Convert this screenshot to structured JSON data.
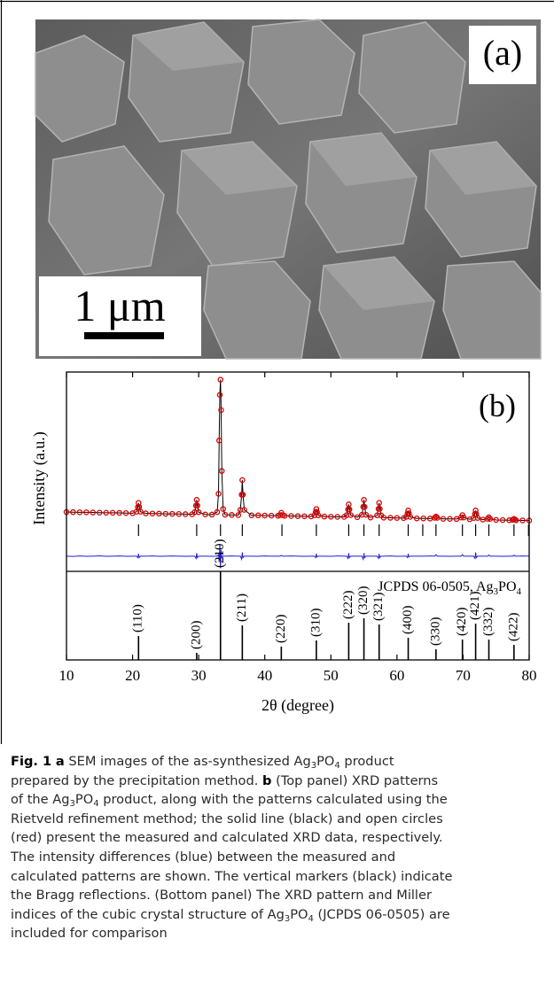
{
  "panel_a": {
    "label": "(a)",
    "scale_bar": "1 μm"
  },
  "chart_data": {
    "type": "line",
    "label": "(b)",
    "y_label": "Intensity (a.u.)",
    "x_label": "2θ (degree)",
    "xlim": [
      10,
      80
    ],
    "xticks": [
      10,
      20,
      30,
      40,
      50,
      60,
      70,
      80
    ],
    "ylim": [
      -26,
      105
    ],
    "x": [
      10,
      11,
      12,
      13,
      14,
      15,
      16,
      17,
      18,
      19,
      20,
      20.6,
      20.8,
      20.9,
      21.0,
      21.2,
      22,
      23,
      24,
      25,
      26,
      27,
      28,
      29,
      29.4,
      29.6,
      29.7,
      29.8,
      30.0,
      31,
      32,
      32.8,
      33.0,
      33.1,
      33.2,
      33.3,
      33.4,
      33.5,
      33.7,
      34,
      35,
      36,
      36.3,
      36.5,
      36.6,
      36.7,
      36.9,
      38,
      39,
      40,
      41,
      42,
      42.3,
      42.5,
      42.7,
      43,
      44,
      45,
      46,
      47,
      47.5,
      47.7,
      47.8,
      47.9,
      48.1,
      49,
      50,
      51,
      52,
      52.4,
      52.6,
      52.7,
      52.8,
      53.0,
      54,
      54.7,
      54.9,
      55.0,
      55.1,
      55.3,
      56,
      57.0,
      57.2,
      57.3,
      57.4,
      57.6,
      58,
      59,
      60,
      61,
      61.4,
      61.6,
      61.7,
      61.8,
      62.0,
      63,
      64,
      65,
      65.7,
      65.9,
      66.1,
      67,
      68,
      69,
      69.7,
      69.9,
      70.1,
      71,
      71.6,
      71.8,
      71.9,
      72.0,
      72.2,
      73,
      73.7,
      73.9,
      74.1,
      75,
      76,
      77,
      77.5,
      77.7,
      77.9,
      78,
      79,
      80
    ],
    "series": [
      {
        "color": "#000000",
        "values": [
          13.0,
          12.9,
          12.8,
          12.8,
          12.7,
          12.6,
          12.5,
          12.5,
          12.4,
          12.3,
          12.2,
          13.2,
          16.3,
          19.0,
          16.3,
          13.2,
          12.1,
          12.0,
          11.9,
          11.8,
          11.8,
          11.7,
          11.6,
          11.5,
          12.9,
          17.2,
          21.0,
          17.2,
          12.9,
          11.4,
          11.3,
          13,
          25,
          60,
          90,
          100,
          80,
          40,
          15,
          11.2,
          11.1,
          11.0,
          14.4,
          24.4,
          34.0,
          24.4,
          14.4,
          10.8,
          10.8,
          10.7,
          10.6,
          10.5,
          11.0,
          12.5,
          11.0,
          10.5,
          10.4,
          10.3,
          10.2,
          10.1,
          10.8,
          13.0,
          15.0,
          13.0,
          10.8,
          10.0,
          9.9,
          9.8,
          9.8,
          11.0,
          14.7,
          18.0,
          14.7,
          11.0,
          9.6,
          11.2,
          16.4,
          21.0,
          16.4,
          11.2,
          9.4,
          10.8,
          15.1,
          19.0,
          15.1,
          10.8,
          9.3,
          9.2,
          9.1,
          9.0,
          9.8,
          12.0,
          14.0,
          12.0,
          9.8,
          8.8,
          8.8,
          8.7,
          9.2,
          10.0,
          9.2,
          8.5,
          8.5,
          8.4,
          9.4,
          11.0,
          9.4,
          8.2,
          9.1,
          11.7,
          14.0,
          11.7,
          9.1,
          8.0,
          8.5,
          9.5,
          8.5,
          7.8,
          7.7,
          7.6,
          7.9,
          8.5,
          7.9,
          7.6,
          7.5,
          7.4
        ]
      },
      {
        "color": "#d40000",
        "marker": "circle",
        "values": [
          13.0,
          12.9,
          12.8,
          12.8,
          12.7,
          12.6,
          12.5,
          12.5,
          12.4,
          12.3,
          12.2,
          13.2,
          16.3,
          19.0,
          16.3,
          13.2,
          12.1,
          12.0,
          11.9,
          11.8,
          11.8,
          11.7,
          11.6,
          11.5,
          12.9,
          17.2,
          21.0,
          17.2,
          12.9,
          11.4,
          11.3,
          13,
          25,
          60,
          90,
          100,
          80,
          40,
          15,
          11.2,
          11.1,
          11.0,
          14.4,
          24.4,
          34.0,
          24.4,
          14.4,
          10.8,
          10.8,
          10.7,
          10.6,
          10.5,
          11.0,
          12.5,
          11.0,
          10.5,
          10.4,
          10.3,
          10.2,
          10.1,
          10.8,
          13.0,
          15.0,
          13.0,
          10.8,
          10.0,
          9.9,
          9.8,
          9.8,
          11.0,
          14.7,
          18.0,
          14.7,
          11.0,
          9.6,
          11.2,
          16.4,
          21.0,
          16.4,
          11.2,
          9.4,
          10.8,
          15.1,
          19.0,
          15.1,
          10.8,
          9.3,
          9.2,
          9.1,
          9.0,
          9.8,
          12.0,
          14.0,
          12.0,
          9.8,
          8.8,
          8.8,
          8.7,
          9.2,
          10.0,
          9.2,
          8.5,
          8.5,
          8.4,
          9.4,
          11.0,
          9.4,
          8.2,
          9.1,
          11.7,
          14.0,
          11.7,
          9.1,
          8.0,
          8.5,
          9.5,
          8.5,
          7.8,
          7.7,
          7.6,
          7.9,
          8.5,
          7.9,
          7.6,
          7.5,
          7.4
        ]
      },
      {
        "color": "#1f1fd6",
        "values": [
          -16,
          -16.2,
          -15.9,
          -16.1,
          -16,
          -15.8,
          -16.1,
          -16,
          -15.9,
          -16.1,
          -16,
          -16,
          -17,
          -14.5,
          -17,
          -16,
          -16,
          -15.9,
          -16.1,
          -16,
          -15.9,
          -16,
          -16.1,
          -16,
          -16,
          -17.5,
          -14,
          -17,
          -16,
          -16,
          -16.1,
          -16,
          -15,
          -20,
          -8,
          -24,
          -12,
          -17,
          -16,
          -16,
          -15.9,
          -16,
          -16,
          -18,
          -13.5,
          -17,
          -16,
          -16,
          -16.1,
          -15.9,
          -16,
          -16,
          -16,
          -15.5,
          -16,
          -16,
          -15.9,
          -16,
          -16.1,
          -16,
          -16,
          -17,
          -14.5,
          -16.5,
          -16,
          -16,
          -16.1,
          -15.9,
          -16,
          -16,
          -17.5,
          -14,
          -17,
          -16,
          -16,
          -16,
          -18,
          -14,
          -17,
          -16,
          -16,
          -16,
          -17.5,
          -14.5,
          -17,
          -16,
          -16,
          -15.9,
          -16.1,
          -16,
          -16,
          -17,
          -14.5,
          -16.5,
          -16,
          -16,
          -16,
          -15.9,
          -16,
          -15,
          -16,
          -16,
          -16.1,
          -16,
          -16,
          -15,
          -16,
          -16,
          -16,
          -17.5,
          -13.5,
          -17,
          -16,
          -16,
          -16,
          -15.2,
          -16,
          -16,
          -16.1,
          -16,
          -16,
          -15.4,
          -16,
          -16,
          -15.9,
          -16
        ]
      }
    ],
    "bragg_positions": [
      20.9,
      29.7,
      33.3,
      36.6,
      42.6,
      47.8,
      52.7,
      55.0,
      57.3,
      61.7,
      63.9,
      65.9,
      69.9,
      71.9,
      73.9,
      77.7,
      79.9
    ],
    "reference": {
      "label": [
        "JCPDS 06-0505, Ag",
        "3",
        "PO",
        "4"
      ],
      "ylim": [
        0,
        100
      ],
      "positions": [
        20.9,
        29.7,
        33.3,
        36.6,
        42.5,
        47.8,
        52.7,
        55.0,
        57.3,
        61.7,
        65.9,
        69.9,
        71.9,
        73.9,
        77.7
      ],
      "intensities": [
        27,
        8,
        100,
        39,
        15,
        22,
        42,
        47,
        40,
        25,
        12,
        23,
        41,
        23,
        17
      ],
      "hkl": [
        "(110)",
        "(200)",
        "(210)",
        "(211)",
        "(220)",
        "(310)",
        "(222)",
        "(320)",
        "(321)",
        "(400)",
        "(330)",
        "(420)",
        "(421)",
        "(332)",
        "(422)"
      ]
    }
  },
  "caption": [
    "Fig. 1",
    "a",
    " SEM images of the as-synthesized Ag",
    "3",
    "PO",
    "4",
    " product",
    "prepared by the precipitation method. ",
    "b",
    " (Top panel) XRD patterns",
    "of the Ag",
    "3",
    "PO",
    "4",
    " product, along with the patterns calculated using the",
    "Rietveld refinement method; the solid line (black) and open circles",
    "(red) present the measured and calculated XRD data, respectively.",
    "The intensity differences (blue) between the measured and",
    "calculated patterns are shown. The vertical markers (black) indicate",
    "the Bragg reflections. (Bottom panel) The XRD pattern and Miller",
    "indices of the cubic crystal structure of Ag",
    "3",
    "PO",
    "4",
    " (JCPDS 06-0505) are",
    "included for comparison"
  ]
}
